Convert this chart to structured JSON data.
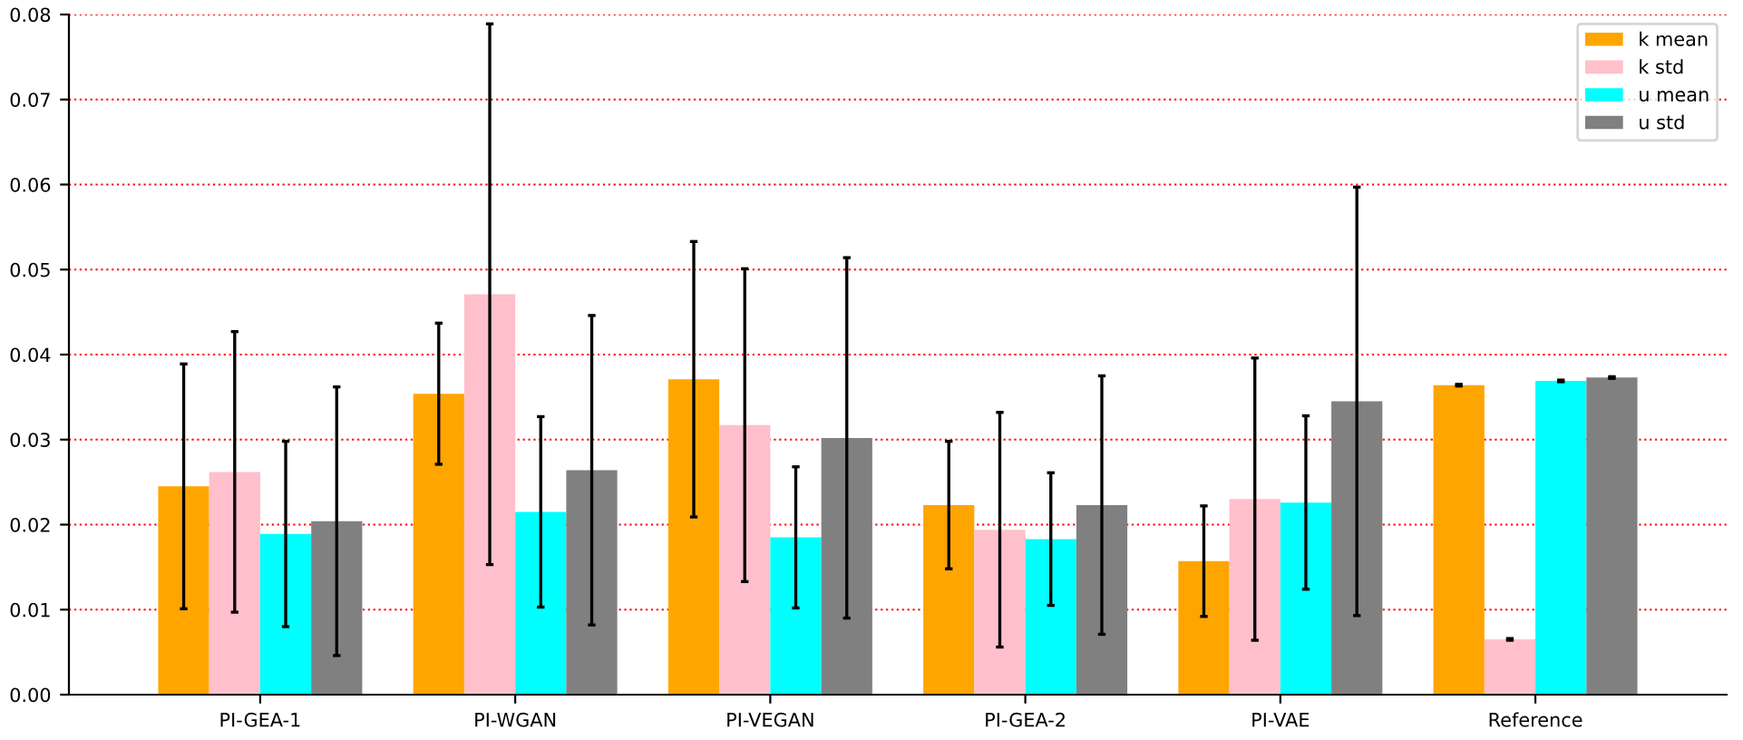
{
  "chart_data": {
    "type": "bar",
    "categories": [
      "PI-GEA-1",
      "PI-WGAN",
      "PI-VEGAN",
      "PI-GEA-2",
      "PI-VAE",
      "Reference"
    ],
    "series": [
      {
        "name": "k mean",
        "color": "#ffa500",
        "values": [
          0.0245,
          0.0354,
          0.0371,
          0.0223,
          0.0157,
          0.0364
        ],
        "errors": [
          0.0144,
          0.0083,
          0.0162,
          0.0075,
          0.0065,
          0.0001
        ]
      },
      {
        "name": "k std",
        "color": "#ffc0cb",
        "values": [
          0.0262,
          0.0471,
          0.0317,
          0.0194,
          0.023,
          0.0065
        ],
        "errors": [
          0.0165,
          0.0318,
          0.0184,
          0.0138,
          0.0166,
          0.0001
        ]
      },
      {
        "name": "u mean",
        "color": "#00ffff",
        "values": [
          0.0189,
          0.0215,
          0.0185,
          0.0183,
          0.0226,
          0.0369
        ],
        "errors": [
          0.0109,
          0.0112,
          0.0083,
          0.0078,
          0.0102,
          0.0001
        ]
      },
      {
        "name": "u std",
        "color": "#808080",
        "values": [
          0.0204,
          0.0264,
          0.0302,
          0.0223,
          0.0345,
          0.0373
        ],
        "errors": [
          0.0158,
          0.0182,
          0.0212,
          0.0152,
          0.0252,
          0.0001
        ]
      }
    ],
    "ylim": [
      0,
      0.08
    ],
    "yticks": [
      {
        "value": 0,
        "label": "0.00"
      },
      {
        "value": 0.01,
        "label": "0.01"
      },
      {
        "value": 0.02,
        "label": "0.02"
      },
      {
        "value": 0.03,
        "label": "0.03"
      },
      {
        "value": 0.04,
        "label": "0.04"
      },
      {
        "value": 0.05,
        "label": "0.05"
      },
      {
        "value": 0.06,
        "label": "0.06"
      },
      {
        "value": 0.07,
        "label": "0.07"
      },
      {
        "value": 0.08,
        "label": "0.08"
      }
    ],
    "grid": "y",
    "legend": "top right"
  }
}
